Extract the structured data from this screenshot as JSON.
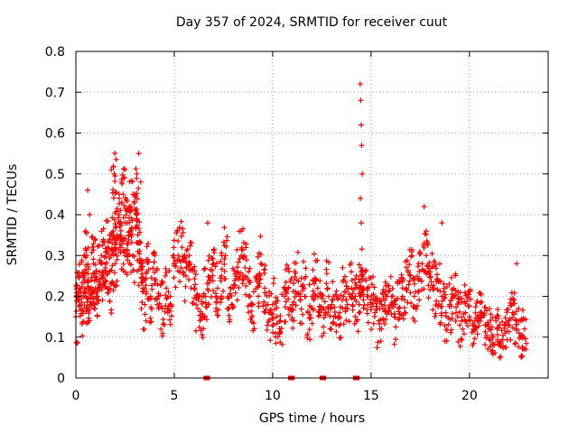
{
  "chart_data": {
    "type": "scatter",
    "title": "Day 357 of 2024, SRMTID for receiver cuut",
    "xlabel": "GPS time / hours",
    "ylabel": "SRMTID / TECUs",
    "xlim": [
      0,
      24
    ],
    "ylim": [
      0,
      0.8
    ],
    "xticks": [
      0,
      5,
      10,
      15,
      20
    ],
    "yticks": [
      0,
      0.1,
      0.2,
      0.3,
      0.4,
      0.5,
      0.6,
      0.7,
      0.8
    ],
    "grid": true,
    "marker": "+",
    "series_color": "#ff0000",
    "series": [
      {
        "name": "SRMTID",
        "x": [
          0.0,
          0.1,
          0.2,
          0.3,
          0.4,
          0.5,
          0.55,
          0.6,
          0.7,
          0.8,
          0.9,
          1.0,
          1.1,
          1.2,
          1.3,
          1.4,
          1.5,
          1.6,
          1.7,
          1.8,
          1.9,
          1.95,
          2.0,
          2.1,
          2.2,
          2.3,
          2.4,
          2.5,
          2.6,
          2.7,
          2.8,
          2.9,
          3.0,
          3.1,
          3.2,
          3.3,
          3.4,
          3.5,
          3.6,
          3.8,
          4.0,
          4.2,
          4.4,
          4.6,
          4.8,
          5.0,
          5.2,
          5.4,
          5.6,
          5.8,
          6.0,
          6.2,
          6.4,
          6.6,
          6.8,
          7.0,
          7.2,
          7.4,
          7.6,
          7.8,
          8.0,
          8.2,
          8.4,
          8.6,
          8.8,
          9.0,
          9.2,
          9.4,
          9.6,
          9.8,
          10.0,
          10.2,
          10.4,
          10.6,
          10.8,
          11.0,
          11.2,
          11.4,
          11.6,
          11.8,
          12.0,
          12.2,
          12.4,
          12.6,
          12.8,
          13.0,
          13.2,
          13.4,
          13.6,
          13.8,
          14.0,
          14.2,
          14.4,
          14.5,
          14.6,
          14.8,
          15.0,
          15.2,
          15.4,
          15.6,
          15.8,
          16.0,
          16.2,
          16.4,
          16.6,
          16.8,
          17.0,
          17.2,
          17.4,
          17.6,
          17.8,
          18.0,
          18.2,
          18.4,
          18.6,
          18.8,
          19.0,
          19.2,
          19.4,
          19.6,
          19.8,
          20.0,
          20.2,
          20.4,
          20.6,
          20.8,
          21.0,
          21.2,
          21.4,
          21.6,
          21.8,
          22.0,
          22.2,
          22.4,
          22.6,
          22.8,
          1.8,
          2.5,
          2.9,
          3.1,
          3.2,
          3.3,
          0.6,
          0.7,
          14.45,
          14.48,
          14.5,
          14.52,
          14.55,
          14.46,
          14.5,
          17.7,
          17.8,
          18.6,
          6.7,
          8.4,
          22.4
        ],
        "y": [
          0.15,
          0.2,
          0.22,
          0.17,
          0.25,
          0.2,
          0.3,
          0.22,
          0.18,
          0.24,
          0.28,
          0.22,
          0.2,
          0.26,
          0.3,
          0.25,
          0.27,
          0.32,
          0.22,
          0.3,
          0.36,
          0.5,
          0.28,
          0.35,
          0.4,
          0.32,
          0.45,
          0.3,
          0.38,
          0.35,
          0.42,
          0.3,
          0.45,
          0.4,
          0.33,
          0.28,
          0.22,
          0.18,
          0.26,
          0.2,
          0.24,
          0.2,
          0.17,
          0.22,
          0.2,
          0.28,
          0.3,
          0.32,
          0.25,
          0.28,
          0.22,
          0.17,
          0.15,
          0.2,
          0.24,
          0.28,
          0.22,
          0.25,
          0.3,
          0.2,
          0.22,
          0.26,
          0.3,
          0.27,
          0.2,
          0.18,
          0.24,
          0.28,
          0.22,
          0.16,
          0.18,
          0.15,
          0.14,
          0.2,
          0.22,
          0.18,
          0.24,
          0.2,
          0.22,
          0.16,
          0.2,
          0.24,
          0.2,
          0.17,
          0.22,
          0.18,
          0.15,
          0.16,
          0.2,
          0.18,
          0.22,
          0.2,
          0.18,
          0.26,
          0.22,
          0.2,
          0.18,
          0.16,
          0.14,
          0.17,
          0.2,
          0.18,
          0.15,
          0.17,
          0.2,
          0.22,
          0.25,
          0.2,
          0.24,
          0.28,
          0.3,
          0.26,
          0.22,
          0.24,
          0.2,
          0.16,
          0.18,
          0.2,
          0.15,
          0.14,
          0.16,
          0.15,
          0.12,
          0.14,
          0.16,
          0.13,
          0.12,
          0.1,
          0.12,
          0.09,
          0.11,
          0.14,
          0.16,
          0.12,
          0.1,
          0.12,
          0.51,
          0.38,
          0.45,
          0.5,
          0.55,
          0.48,
          0.46,
          0.4,
          0.72,
          0.68,
          0.62,
          0.57,
          0.5,
          0.44,
          0.38,
          0.42,
          0.36,
          0.38,
          0.38,
          0.36,
          0.28
        ],
        "zeros_x": [
          6.6,
          6.7,
          10.9,
          11.0,
          12.5,
          12.6,
          14.2,
          14.3
        ]
      }
    ]
  }
}
